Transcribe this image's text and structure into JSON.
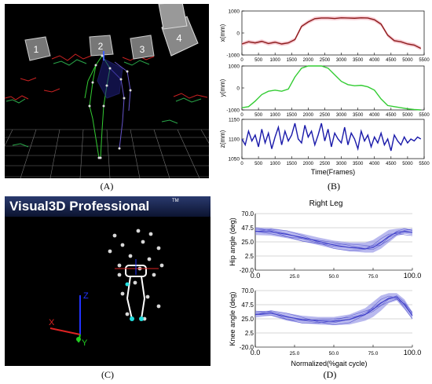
{
  "panels": {
    "A": {
      "label": "(A)",
      "markers": [
        "1",
        "2",
        "3",
        "4"
      ]
    },
    "B": {
      "label": "(B)"
    },
    "C": {
      "label": "(C)",
      "brand": "Visual3D Professional",
      "tm": "TM",
      "axis_x": "X",
      "axis_y": "Y",
      "axis_z": "Z"
    },
    "D": {
      "label": "(D)"
    }
  },
  "colors": {
    "x_line": "#8b1a1a",
    "x_band": "#f4b6c2",
    "y_line": "#33cc33",
    "z_line": "#1a1aaa",
    "gait_band": "#8080e0",
    "gait_line": "#3c3cc8"
  },
  "chart_data": [
    {
      "type": "line",
      "panel": "B-top",
      "ylabel": "x(mm)",
      "xlim": [
        0,
        5500
      ],
      "ylim": [
        -1000,
        1000
      ],
      "x_ticks": [
        "0",
        "500",
        "1000",
        "1500",
        "2000",
        "2500",
        "3000",
        "3500",
        "4000",
        "4500",
        "5000",
        "5500"
      ],
      "y_ticks": [
        "1000",
        "0",
        "-1000"
      ],
      "x": [
        0,
        200,
        400,
        600,
        800,
        1000,
        1200,
        1400,
        1600,
        1800,
        2000,
        2200,
        2400,
        2600,
        2800,
        3000,
        3200,
        3400,
        3600,
        3800,
        4000,
        4200,
        4400,
        4600,
        4800,
        5000,
        5200,
        5400
      ],
      "values": [
        -500,
        -400,
        -450,
        -380,
        -480,
        -420,
        -500,
        -450,
        -300,
        300,
        500,
        650,
        680,
        680,
        660,
        690,
        680,
        670,
        690,
        680,
        600,
        400,
        -100,
        -350,
        -400,
        -500,
        -550,
        -700
      ]
    },
    {
      "type": "line",
      "panel": "B-mid",
      "ylabel": "y(mm)",
      "xlim": [
        0,
        5500
      ],
      "ylim": [
        -1000,
        1000
      ],
      "x_ticks": [
        "0",
        "500",
        "1000",
        "1500",
        "2000",
        "2500",
        "3000",
        "3500",
        "4000",
        "4500",
        "5000",
        "5500"
      ],
      "y_ticks": [
        "1000",
        "0",
        "-1000"
      ],
      "x": [
        0,
        200,
        400,
        600,
        800,
        1000,
        1200,
        1400,
        1600,
        1800,
        2000,
        2200,
        2400,
        2600,
        2800,
        3000,
        3200,
        3400,
        3600,
        3800,
        4000,
        4200,
        4400,
        4600,
        4800,
        5000,
        5200,
        5400
      ],
      "values": [
        -900,
        -850,
        -600,
        -300,
        -150,
        -100,
        -150,
        -50,
        500,
        900,
        1000,
        1000,
        1000,
        900,
        600,
        300,
        150,
        100,
        120,
        50,
        -100,
        -500,
        -800,
        -850,
        -900,
        -950,
        -980,
        -1000
      ]
    },
    {
      "type": "line",
      "panel": "B-bottom",
      "ylabel": "z(mm)",
      "xlabel": "Time(Frames)",
      "xlim": [
        0,
        5500
      ],
      "ylim": [
        1050,
        1150
      ],
      "x_ticks": [
        "0",
        "500",
        "1000",
        "1500",
        "2000",
        "2500",
        "3000",
        "3500",
        "4000",
        "4500",
        "5000",
        "5500"
      ],
      "y_ticks": [
        "1150",
        "1100",
        "1050"
      ],
      "x": [
        0,
        100,
        200,
        300,
        400,
        500,
        600,
        700,
        800,
        900,
        1000,
        1100,
        1200,
        1300,
        1400,
        1500,
        1600,
        1700,
        1800,
        1900,
        2000,
        2100,
        2200,
        2300,
        2400,
        2500,
        2600,
        2700,
        2800,
        2900,
        3000,
        3100,
        3200,
        3300,
        3400,
        3500,
        3600,
        3700,
        3800,
        3900,
        4000,
        4100,
        4200,
        4300,
        4400,
        4500,
        4600,
        4700,
        4800,
        4900,
        5000,
        5100,
        5200,
        5300,
        5400
      ],
      "values": [
        1100,
        1085,
        1120,
        1095,
        1110,
        1080,
        1125,
        1090,
        1115,
        1075,
        1105,
        1130,
        1085,
        1120,
        1095,
        1110,
        1140,
        1100,
        1090,
        1135,
        1105,
        1120,
        1085,
        1110,
        1140,
        1095,
        1125,
        1080,
        1115,
        1100,
        1090,
        1130,
        1085,
        1115,
        1100,
        1075,
        1120,
        1095,
        1110,
        1080,
        1105,
        1090,
        1115,
        1085,
        1100,
        1070,
        1110,
        1095,
        1085,
        1105,
        1090,
        1100,
        1095,
        1105,
        1100
      ]
    },
    {
      "type": "line",
      "panel": "D-top",
      "title": "Right Leg",
      "ylabel": "Hip angle (deg)",
      "xlim": [
        0,
        100
      ],
      "ylim": [
        -20,
        70
      ],
      "x_ticks": [
        "0.0",
        "25.0",
        "50.0",
        "75.0",
        "100.0"
      ],
      "y_ticks": [
        "70.0",
        "47.5",
        "25.0",
        "2.5",
        "-20.0"
      ],
      "x": [
        0,
        10,
        20,
        30,
        40,
        50,
        60,
        70,
        75,
        80,
        85,
        90,
        95,
        100
      ],
      "mean": [
        42,
        41,
        37,
        32,
        26,
        20,
        16,
        14,
        16,
        24,
        34,
        40,
        42,
        40
      ],
      "band_upper": [
        48,
        47,
        43,
        38,
        32,
        27,
        24,
        24,
        28,
        36,
        44,
        46,
        47,
        45
      ],
      "band_lower": [
        36,
        35,
        31,
        26,
        20,
        14,
        10,
        8,
        8,
        14,
        24,
        34,
        38,
        36
      ]
    },
    {
      "type": "line",
      "panel": "D-bottom",
      "ylabel": "Knee angle (deg)",
      "xlabel": "Normalized(%gait cycle)",
      "xlim": [
        0,
        100
      ],
      "ylim": [
        -20,
        70
      ],
      "x_ticks": [
        "0.0",
        "25.0",
        "50.0",
        "75.0",
        "100.0"
      ],
      "y_ticks": [
        "70.0",
        "47.5",
        "25.0",
        "2.5",
        "-20.0"
      ],
      "x": [
        0,
        10,
        20,
        30,
        40,
        50,
        60,
        70,
        75,
        80,
        85,
        90,
        95,
        100
      ],
      "mean": [
        32,
        34,
        28,
        24,
        22,
        21,
        24,
        32,
        40,
        50,
        58,
        60,
        48,
        30
      ],
      "band_upper": [
        37,
        38,
        34,
        30,
        28,
        28,
        32,
        42,
        52,
        62,
        66,
        66,
        56,
        36
      ],
      "band_lower": [
        27,
        30,
        22,
        18,
        16,
        15,
        16,
        22,
        28,
        38,
        50,
        54,
        40,
        24
      ]
    }
  ]
}
